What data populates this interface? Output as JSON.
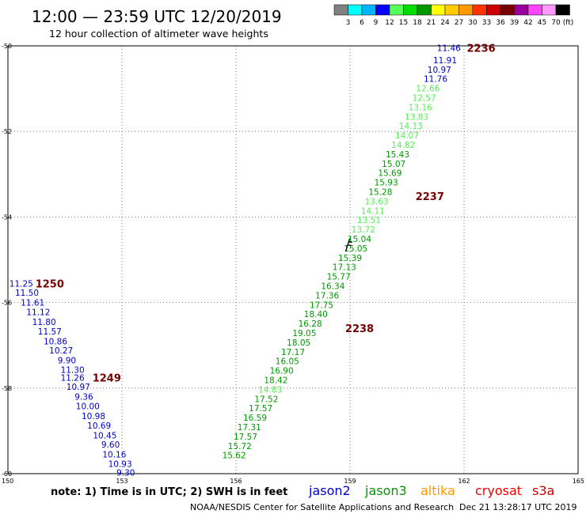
{
  "header": {
    "title": "12:00 — 23:59 UTC 12/20/2019",
    "subtitle": "12 hour collection of altimeter wave heights"
  },
  "legend_scale": {
    "labels": [
      "3",
      "6",
      "9",
      "12",
      "15",
      "18",
      "21",
      "24",
      "27",
      "30",
      "33",
      "36",
      "39",
      "42",
      "45",
      "70"
    ],
    "colors": [
      "#808080",
      "#00ffff",
      "#00b4ff",
      "#0000ff",
      "#55ff55",
      "#00dd00",
      "#009900",
      "#ffff00",
      "#ffcc00",
      "#ff9900",
      "#ff3300",
      "#cc0000",
      "#770000",
      "#990099",
      "#ff44ff",
      "#ff99ff",
      "#000000"
    ],
    "unit": "(ft)"
  },
  "footer": {
    "note": "note: 1) Time is in UTC; 2) SWH is in feet",
    "satellites": [
      {
        "name": "jason2",
        "color": "#0000cc"
      },
      {
        "name": "jason3",
        "color": "#009900"
      },
      {
        "name": "altika",
        "color": "#ff9900"
      },
      {
        "name": "cryosat",
        "color": "#ee0000"
      },
      {
        "name": "s3a",
        "color": "#cc0000"
      }
    ],
    "credit": "NOAA/NESDIS Center for Satellite Applications and Research",
    "timestamp": "Dec 21 13:28:17 UTC 2019"
  },
  "chart_data": {
    "type": "scatter",
    "xlim": [
      150,
      165
    ],
    "ylim": [
      -60,
      -50
    ],
    "x_ticks": [
      "150",
      "153",
      "156",
      "159",
      "162",
      "165"
    ],
    "y_ticks": [
      "-50",
      "-52",
      "-54",
      "-56",
      "-58",
      "-60"
    ],
    "grid": true,
    "series": [
      {
        "name": "jason2",
        "color": "#0000cc",
        "points": [
          {
            "lon": 161.6,
            "lat": -50.05,
            "swh": "11.46"
          },
          {
            "lon": 161.5,
            "lat": -50.33,
            "swh": "11.91"
          },
          {
            "lon": 161.35,
            "lat": -50.55,
            "swh": "10.97"
          },
          {
            "lon": 161.25,
            "lat": -50.77,
            "swh": "11.76"
          },
          {
            "lon": 150.35,
            "lat": -55.55,
            "swh": "11.25"
          },
          {
            "lon": 150.5,
            "lat": -55.77,
            "swh": "11.50"
          },
          {
            "lon": 150.65,
            "lat": -56.0,
            "swh": "11.61"
          },
          {
            "lon": 150.8,
            "lat": -56.22,
            "swh": "11.12"
          },
          {
            "lon": 150.95,
            "lat": -56.45,
            "swh": "11.80"
          },
          {
            "lon": 151.1,
            "lat": -56.67,
            "swh": "11.57"
          },
          {
            "lon": 151.25,
            "lat": -56.9,
            "swh": "10.86"
          },
          {
            "lon": 151.4,
            "lat": -57.12,
            "swh": "10.27"
          },
          {
            "lon": 151.55,
            "lat": -57.35,
            "swh": "9.90"
          },
          {
            "lon": 151.7,
            "lat": -57.57,
            "swh": "11.30"
          },
          {
            "lon": 151.7,
            "lat": -57.75,
            "swh": "11.26"
          },
          {
            "lon": 151.85,
            "lat": -57.97,
            "swh": "10.97"
          },
          {
            "lon": 152.0,
            "lat": -58.2,
            "swh": "9.36"
          },
          {
            "lon": 152.1,
            "lat": -58.42,
            "swh": "10.00"
          },
          {
            "lon": 152.25,
            "lat": -58.65,
            "swh": "10.98"
          },
          {
            "lon": 152.4,
            "lat": -58.87,
            "swh": "10.69"
          },
          {
            "lon": 152.55,
            "lat": -59.1,
            "swh": "10.45"
          },
          {
            "lon": 152.7,
            "lat": -59.32,
            "swh": "9.60"
          },
          {
            "lon": 152.8,
            "lat": -59.55,
            "swh": "10.16"
          },
          {
            "lon": 152.95,
            "lat": -59.77,
            "swh": "10.93"
          },
          {
            "lon": 153.1,
            "lat": -59.97,
            "swh": "9.30"
          }
        ]
      },
      {
        "name": "jason3",
        "color": "#009900",
        "points": [
          {
            "lon": 161.05,
            "lat": -50.99,
            "swh": "12.66",
            "band": "light"
          },
          {
            "lon": 160.95,
            "lat": -51.21,
            "swh": "12.57",
            "band": "light"
          },
          {
            "lon": 160.85,
            "lat": -51.43,
            "swh": "13.16",
            "band": "light"
          },
          {
            "lon": 160.75,
            "lat": -51.65,
            "swh": "13.83",
            "band": "light"
          },
          {
            "lon": 160.6,
            "lat": -51.87,
            "swh": "14.13",
            "band": "light"
          },
          {
            "lon": 160.5,
            "lat": -52.09,
            "swh": "14.07",
            "band": "light"
          },
          {
            "lon": 160.4,
            "lat": -52.31,
            "swh": "14.82",
            "band": "light"
          },
          {
            "lon": 160.25,
            "lat": -52.53,
            "swh": "15.43",
            "band": "dark"
          },
          {
            "lon": 160.15,
            "lat": -52.75,
            "swh": "15.07",
            "band": "dark"
          },
          {
            "lon": 160.05,
            "lat": -52.97,
            "swh": "15.69",
            "band": "dark"
          },
          {
            "lon": 159.95,
            "lat": -53.19,
            "swh": "15.93",
            "band": "dark"
          },
          {
            "lon": 159.8,
            "lat": -53.41,
            "swh": "15.28",
            "band": "dark"
          },
          {
            "lon": 159.7,
            "lat": -53.63,
            "swh": "13.63",
            "band": "light"
          },
          {
            "lon": 159.6,
            "lat": -53.85,
            "swh": "14.11",
            "band": "light"
          },
          {
            "lon": 159.5,
            "lat": -54.07,
            "swh": "13.51",
            "band": "light"
          },
          {
            "lon": 159.35,
            "lat": -54.29,
            "swh": "13.72",
            "band": "light"
          },
          {
            "lon": 159.25,
            "lat": -54.51,
            "swh": "15.04",
            "band": "dark"
          },
          {
            "lon": 159.15,
            "lat": -54.73,
            "swh": "15.05",
            "band": "dark"
          },
          {
            "lon": 159.0,
            "lat": -54.95,
            "swh": "15.39",
            "band": "dark"
          },
          {
            "lon": 158.85,
            "lat": -55.17,
            "swh": "17.13",
            "band": "dark"
          },
          {
            "lon": 158.7,
            "lat": -55.39,
            "swh": "15.77",
            "band": "dark"
          },
          {
            "lon": 158.55,
            "lat": -55.61,
            "swh": "16.34",
            "band": "dark"
          },
          {
            "lon": 158.4,
            "lat": -55.83,
            "swh": "17.36",
            "band": "dark"
          },
          {
            "lon": 158.25,
            "lat": -56.05,
            "swh": "17.75",
            "band": "dark"
          },
          {
            "lon": 158.1,
            "lat": -56.27,
            "swh": "18.40",
            "band": "dark"
          },
          {
            "lon": 157.95,
            "lat": -56.49,
            "swh": "16.28",
            "band": "dark"
          },
          {
            "lon": 157.8,
            "lat": -56.71,
            "swh": "19.05",
            "band": "dark"
          },
          {
            "lon": 157.65,
            "lat": -56.93,
            "swh": "18.05",
            "band": "dark"
          },
          {
            "lon": 157.5,
            "lat": -57.15,
            "swh": "17.17",
            "band": "dark"
          },
          {
            "lon": 157.35,
            "lat": -57.37,
            "swh": "16.05",
            "band": "dark"
          },
          {
            "lon": 157.2,
            "lat": -57.59,
            "swh": "16.90",
            "band": "dark"
          },
          {
            "lon": 157.05,
            "lat": -57.81,
            "swh": "18.42",
            "band": "dark"
          },
          {
            "lon": 156.9,
            "lat": -58.03,
            "swh": "14.83",
            "band": "light"
          },
          {
            "lon": 156.8,
            "lat": -58.25,
            "swh": "17.52",
            "band": "dark"
          },
          {
            "lon": 156.65,
            "lat": -58.47,
            "swh": "17.57",
            "band": "dark"
          },
          {
            "lon": 156.5,
            "lat": -58.69,
            "swh": "16.59",
            "band": "dark"
          },
          {
            "lon": 156.35,
            "lat": -58.91,
            "swh": "17.31",
            "band": "dark"
          },
          {
            "lon": 156.25,
            "lat": -59.13,
            "swh": "17.57",
            "band": "dark"
          },
          {
            "lon": 156.1,
            "lat": -59.35,
            "swh": "15.72",
            "band": "dark"
          },
          {
            "lon": 155.95,
            "lat": -59.57,
            "swh": "15.62",
            "band": "dark"
          }
        ]
      }
    ],
    "time_labels": [
      {
        "text": "2236",
        "lon": 162.45,
        "lat": -50.05
      },
      {
        "text": "2237",
        "lon": 161.1,
        "lat": -53.51
      },
      {
        "text": "1250",
        "lon": 151.1,
        "lat": -55.55
      },
      {
        "text": "2238",
        "lon": 159.25,
        "lat": -56.6
      },
      {
        "text": "1249",
        "lon": 152.6,
        "lat": -57.75
      }
    ],
    "time_label_color": "#770000",
    "wind_barb": {
      "lon": 158.95,
      "lat": -54.65
    }
  }
}
